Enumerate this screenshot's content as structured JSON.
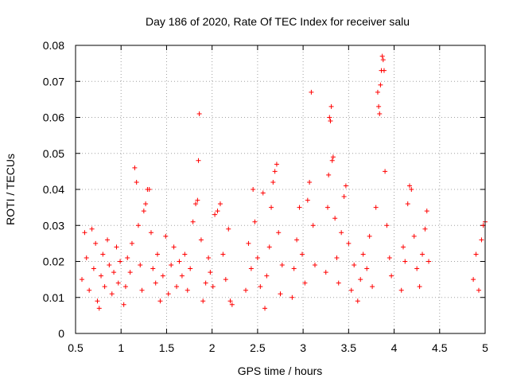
{
  "chart_data": {
    "type": "scatter",
    "title": "Day 186 of 2020, Rate Of TEC Index for receiver salu",
    "xlabel": "GPS time / hours",
    "ylabel": "ROTI / TECUs",
    "xlim": [
      0.5,
      5
    ],
    "ylim": [
      0,
      0.08
    ],
    "x_ticks": [
      0.5,
      1,
      1.5,
      2,
      2.5,
      3,
      3.5,
      4,
      4.5,
      5
    ],
    "y_ticks": [
      0,
      0.01,
      0.02,
      0.03,
      0.04,
      0.05,
      0.06,
      0.07,
      0.08
    ],
    "x_tick_labels": [
      "0.5",
      "1",
      "1.5",
      "2",
      "2.5",
      "3",
      "3.5",
      "4",
      "4.5",
      "5"
    ],
    "y_tick_labels": [
      "0",
      "0.01",
      "0.02",
      "0.03",
      "0.04",
      "0.05",
      "0.06",
      "0.07",
      "0.08"
    ],
    "grid": true,
    "marker": "+",
    "color": "#ff0000",
    "series": [
      {
        "name": "ROTI",
        "points": [
          [
            0.57,
            0.015
          ],
          [
            0.6,
            0.028
          ],
          [
            0.62,
            0.021
          ],
          [
            0.65,
            0.012
          ],
          [
            0.68,
            0.029
          ],
          [
            0.7,
            0.018
          ],
          [
            0.72,
            0.025
          ],
          [
            0.74,
            0.009
          ],
          [
            0.76,
            0.007
          ],
          [
            0.78,
            0.016
          ],
          [
            0.8,
            0.022
          ],
          [
            0.82,
            0.013
          ],
          [
            0.85,
            0.026
          ],
          [
            0.87,
            0.019
          ],
          [
            0.9,
            0.011
          ],
          [
            0.92,
            0.017
          ],
          [
            0.95,
            0.024
          ],
          [
            0.97,
            0.014
          ],
          [
            0.99,
            0.02
          ],
          [
            1.03,
            0.008
          ],
          [
            1.05,
            0.013
          ],
          [
            1.07,
            0.021
          ],
          [
            1.1,
            0.017
          ],
          [
            1.12,
            0.025
          ],
          [
            1.15,
            0.046
          ],
          [
            1.17,
            0.042
          ],
          [
            1.19,
            0.03
          ],
          [
            1.21,
            0.019
          ],
          [
            1.23,
            0.012
          ],
          [
            1.25,
            0.034
          ],
          [
            1.27,
            0.036
          ],
          [
            1.29,
            0.04
          ],
          [
            1.31,
            0.04
          ],
          [
            1.33,
            0.028
          ],
          [
            1.35,
            0.018
          ],
          [
            1.38,
            0.014
          ],
          [
            1.4,
            0.022
          ],
          [
            1.43,
            0.009
          ],
          [
            1.46,
            0.016
          ],
          [
            1.49,
            0.027
          ],
          [
            1.52,
            0.011
          ],
          [
            1.55,
            0.019
          ],
          [
            1.58,
            0.024
          ],
          [
            1.61,
            0.013
          ],
          [
            1.64,
            0.02
          ],
          [
            1.67,
            0.016
          ],
          [
            1.7,
            0.022
          ],
          [
            1.73,
            0.012
          ],
          [
            1.76,
            0.018
          ],
          [
            1.79,
            0.031
          ],
          [
            1.82,
            0.036
          ],
          [
            1.84,
            0.037
          ],
          [
            1.85,
            0.048
          ],
          [
            1.86,
            0.061
          ],
          [
            1.88,
            0.026
          ],
          [
            1.9,
            0.009
          ],
          [
            1.93,
            0.014
          ],
          [
            1.96,
            0.021
          ],
          [
            1.98,
            0.017
          ],
          [
            2.01,
            0.013
          ],
          [
            2.03,
            0.033
          ],
          [
            2.06,
            0.034
          ],
          [
            2.09,
            0.036
          ],
          [
            2.12,
            0.022
          ],
          [
            2.15,
            0.015
          ],
          [
            2.18,
            0.029
          ],
          [
            2.2,
            0.009
          ],
          [
            2.22,
            0.008
          ],
          [
            2.37,
            0.012
          ],
          [
            2.4,
            0.025
          ],
          [
            2.43,
            0.018
          ],
          [
            2.45,
            0.04
          ],
          [
            2.47,
            0.031
          ],
          [
            2.5,
            0.021
          ],
          [
            2.53,
            0.013
          ],
          [
            2.56,
            0.039
          ],
          [
            2.58,
            0.007
          ],
          [
            2.6,
            0.016
          ],
          [
            2.63,
            0.024
          ],
          [
            2.65,
            0.035
          ],
          [
            2.67,
            0.042
          ],
          [
            2.69,
            0.045
          ],
          [
            2.71,
            0.047
          ],
          [
            2.73,
            0.028
          ],
          [
            2.75,
            0.011
          ],
          [
            2.77,
            0.019
          ],
          [
            2.88,
            0.01
          ],
          [
            2.9,
            0.018
          ],
          [
            2.93,
            0.026
          ],
          [
            2.96,
            0.035
          ],
          [
            2.99,
            0.022
          ],
          [
            3.02,
            0.014
          ],
          [
            3.05,
            0.037
          ],
          [
            3.07,
            0.042
          ],
          [
            3.09,
            0.067
          ],
          [
            3.11,
            0.03
          ],
          [
            3.13,
            0.019
          ],
          [
            3.25,
            0.017
          ],
          [
            3.27,
            0.035
          ],
          [
            3.28,
            0.044
          ],
          [
            3.29,
            0.06
          ],
          [
            3.3,
            0.059
          ],
          [
            3.31,
            0.063
          ],
          [
            3.32,
            0.048
          ],
          [
            3.33,
            0.049
          ],
          [
            3.35,
            0.032
          ],
          [
            3.37,
            0.021
          ],
          [
            3.39,
            0.014
          ],
          [
            3.42,
            0.028
          ],
          [
            3.45,
            0.038
          ],
          [
            3.47,
            0.041
          ],
          [
            3.5,
            0.025
          ],
          [
            3.53,
            0.012
          ],
          [
            3.56,
            0.019
          ],
          [
            3.6,
            0.009
          ],
          [
            3.63,
            0.015
          ],
          [
            3.66,
            0.022
          ],
          [
            3.7,
            0.018
          ],
          [
            3.73,
            0.027
          ],
          [
            3.76,
            0.013
          ],
          [
            3.8,
            0.035
          ],
          [
            3.82,
            0.067
          ],
          [
            3.83,
            0.063
          ],
          [
            3.84,
            0.061
          ],
          [
            3.85,
            0.069
          ],
          [
            3.86,
            0.073
          ],
          [
            3.87,
            0.077
          ],
          [
            3.88,
            0.076
          ],
          [
            3.89,
            0.073
          ],
          [
            3.9,
            0.045
          ],
          [
            3.92,
            0.03
          ],
          [
            3.95,
            0.021
          ],
          [
            3.97,
            0.016
          ],
          [
            4.08,
            0.012
          ],
          [
            4.1,
            0.024
          ],
          [
            4.12,
            0.02
          ],
          [
            4.15,
            0.036
          ],
          [
            4.17,
            0.041
          ],
          [
            4.19,
            0.04
          ],
          [
            4.22,
            0.027
          ],
          [
            4.25,
            0.018
          ],
          [
            4.28,
            0.013
          ],
          [
            4.31,
            0.022
          ],
          [
            4.34,
            0.029
          ],
          [
            4.36,
            0.034
          ],
          [
            4.38,
            0.02
          ],
          [
            4.87,
            0.015
          ],
          [
            4.9,
            0.022
          ],
          [
            4.93,
            0.012
          ],
          [
            4.96,
            0.026
          ],
          [
            4.98,
            0.03
          ],
          [
            5.0,
            0.031
          ]
        ]
      }
    ]
  }
}
